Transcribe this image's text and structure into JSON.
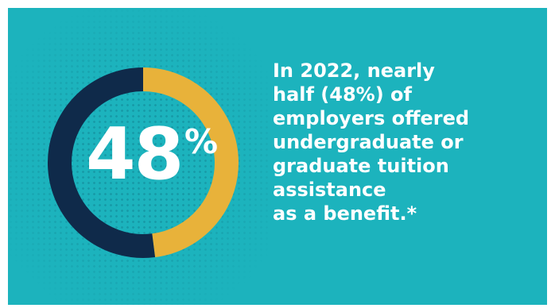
{
  "chart_data": {
    "type": "pie",
    "style": "donut",
    "center_label": {
      "value": "48",
      "symbol": "%"
    },
    "slices": [
      {
        "value": 48,
        "color": "#e8b23a"
      },
      {
        "value": 52,
        "color": "#0f2a4a"
      }
    ]
  },
  "statement": "In 2022, nearly\nhalf (48%) of\nemployers offered\nundergraduate or\ngraduate tuition\nassistance\nas a benefit.*",
  "colors": {
    "background": "#1cb3bd",
    "accent": "#e8b23a",
    "dark": "#0f2a4a",
    "text": "#ffffff"
  }
}
